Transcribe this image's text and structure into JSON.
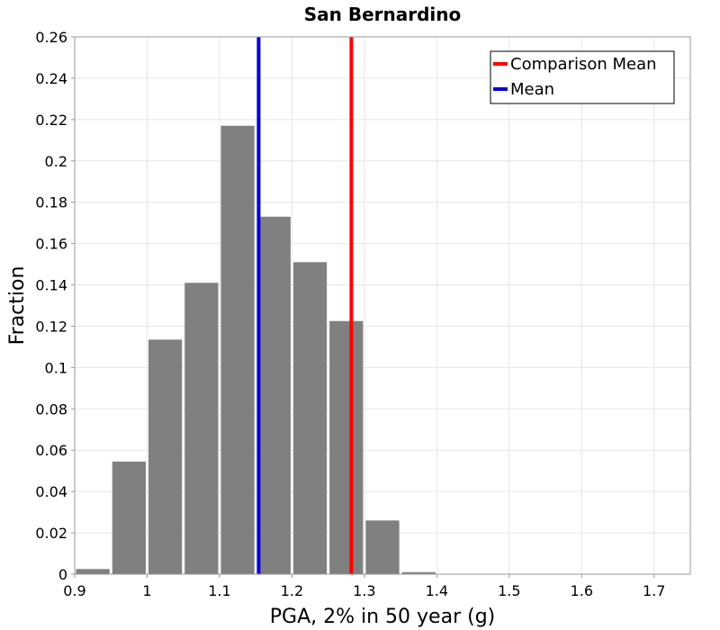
{
  "chart_data": {
    "type": "bar",
    "title": "San Bernardino",
    "xlabel": "PGA, 2% in 50 year (g)",
    "ylabel": "Fraction",
    "xlim": [
      0.9,
      1.75
    ],
    "ylim": [
      0,
      0.26
    ],
    "x_ticks": [
      "0.9",
      "1",
      "1.1",
      "1.2",
      "1.3",
      "1.4",
      "1.5",
      "1.6",
      "1.7"
    ],
    "x_tick_values": [
      0.9,
      1.0,
      1.1,
      1.2,
      1.3,
      1.4,
      1.5,
      1.6,
      1.7
    ],
    "y_ticks": [
      "0",
      "0.02",
      "0.04",
      "0.06",
      "0.08",
      "0.1",
      "0.12",
      "0.14",
      "0.16",
      "0.18",
      "0.2",
      "0.22",
      "0.24",
      "0.26"
    ],
    "y_tick_values": [
      0,
      0.02,
      0.04,
      0.06,
      0.08,
      0.1,
      0.12,
      0.14,
      0.16,
      0.18,
      0.2,
      0.22,
      0.24,
      0.26
    ],
    "bin_width": 0.05,
    "bins": [
      {
        "start": 0.9,
        "value": 0.0025
      },
      {
        "start": 0.95,
        "value": 0.0545
      },
      {
        "start": 1.0,
        "value": 0.1135
      },
      {
        "start": 1.05,
        "value": 0.141
      },
      {
        "start": 1.1,
        "value": 0.217
      },
      {
        "start": 1.15,
        "value": 0.173
      },
      {
        "start": 1.2,
        "value": 0.151
      },
      {
        "start": 1.25,
        "value": 0.1225
      },
      {
        "start": 1.3,
        "value": 0.026
      },
      {
        "start": 1.35,
        "value": 0.001
      }
    ],
    "bar_color": "#808080",
    "grid": true,
    "vlines": [
      {
        "name": "Comparison Mean",
        "x": 1.282,
        "color": "#ff0000"
      },
      {
        "name": "Mean",
        "x": 1.154,
        "color": "#0000dd"
      }
    ],
    "legend_position": "top-right"
  }
}
